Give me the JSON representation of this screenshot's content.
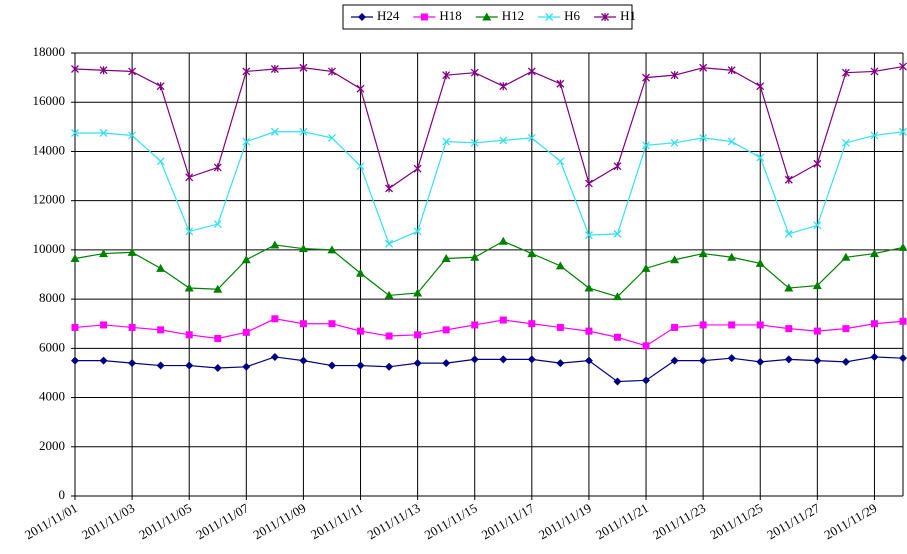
{
  "chart_data": {
    "type": "line",
    "categories": [
      "2011/11/01",
      null,
      "2011/11/03",
      null,
      "2011/11/05",
      null,
      "2011/11/07",
      null,
      "2011/11/09",
      null,
      "2011/11/11",
      null,
      "2011/11/13",
      null,
      "2011/11/15",
      null,
      "2011/11/17",
      null,
      "2011/11/19",
      null,
      "2011/11/21",
      null,
      "2011/11/23",
      null,
      "2011/11/25",
      null,
      "2011/11/27",
      null,
      "2011/11/29",
      null
    ],
    "series": [
      {
        "name": "H24",
        "color": "#000080",
        "marker": "diamond",
        "values": [
          5500,
          5500,
          5400,
          5300,
          5300,
          5200,
          5250,
          5650,
          5500,
          5300,
          5300,
          5250,
          5400,
          5400,
          5550,
          5550,
          5550,
          5400,
          5500,
          4650,
          4700,
          5500,
          5500,
          5600,
          5450,
          5550,
          5500,
          5450,
          5650,
          5600
        ]
      },
      {
        "name": "H18",
        "color": "#ff00ff",
        "marker": "square",
        "values": [
          6850,
          6950,
          6850,
          6750,
          6550,
          6400,
          6650,
          7200,
          7000,
          7000,
          6700,
          6500,
          6550,
          6750,
          6950,
          7150,
          7000,
          6850,
          6700,
          6450,
          6100,
          6850,
          6950,
          6950,
          6950,
          6800,
          6700,
          6800,
          7000,
          7100
        ]
      },
      {
        "name": "H12",
        "color": "#008000",
        "marker": "triangle",
        "values": [
          9650,
          9850,
          9900,
          9250,
          8450,
          8400,
          9600,
          10200,
          10050,
          10000,
          9050,
          8150,
          8250,
          9650,
          9700,
          10350,
          9850,
          9350,
          8450,
          8100,
          9250,
          9600,
          9850,
          9700,
          9450,
          8450,
          8550,
          9700,
          9850,
          10100
        ]
      },
      {
        "name": "H6",
        "color": "#33e0f0",
        "marker": "x",
        "values": [
          14750,
          14750,
          14650,
          13600,
          10750,
          11050,
          14400,
          14800,
          14800,
          14550,
          13400,
          10250,
          10750,
          14400,
          14350,
          14450,
          14550,
          13600,
          10600,
          10650,
          14250,
          14350,
          14550,
          14400,
          13750,
          10650,
          11000,
          14350,
          14650,
          14800
        ]
      },
      {
        "name": "H1",
        "color": "#800080",
        "marker": "star",
        "values": [
          17350,
          17300,
          17250,
          16650,
          12950,
          13350,
          17250,
          17350,
          17400,
          17250,
          16550,
          12500,
          13300,
          17100,
          17200,
          16650,
          17250,
          16750,
          12700,
          13400,
          17000,
          17100,
          17400,
          17300,
          16650,
          12850,
          13500,
          17200,
          17250,
          17450
        ]
      }
    ],
    "ylim": [
      0,
      18000
    ],
    "yticks": [
      0,
      2000,
      4000,
      6000,
      8000,
      10000,
      12000,
      14000,
      16000,
      18000
    ],
    "grid": true,
    "legend": "top"
  }
}
